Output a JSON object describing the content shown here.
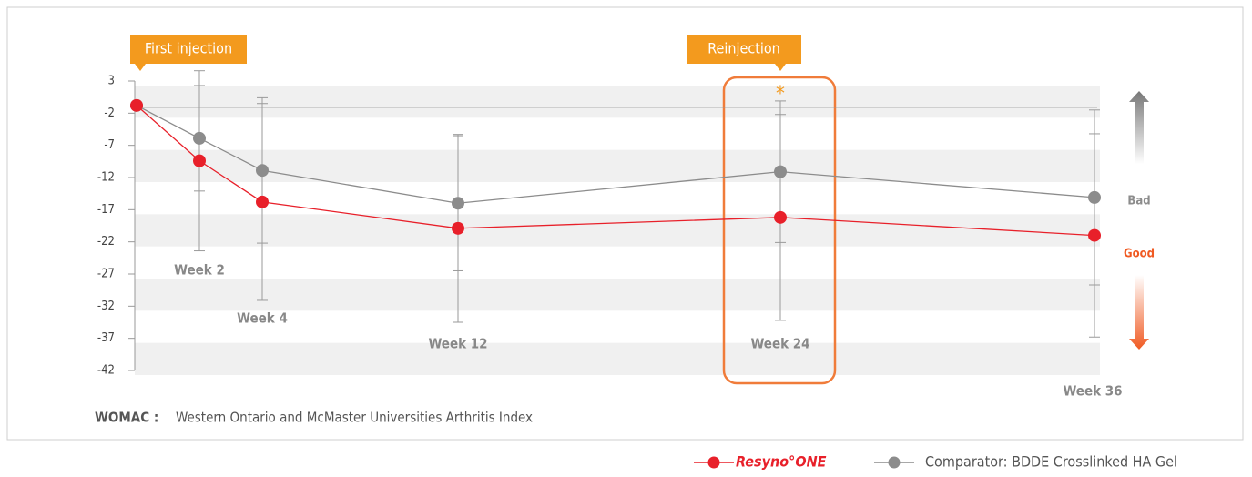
{
  "chart_data": {
    "type": "line",
    "categories": [
      null,
      "Week 2",
      "Week 4",
      "Week 12",
      "Week 24",
      "Week 36"
    ],
    "ylim": [
      -42,
      3
    ],
    "yticks": [
      3,
      -2,
      -7,
      -12,
      -17,
      -22,
      -27,
      -32,
      -37,
      -42
    ],
    "series": [
      {
        "name": "Comparator: BDDE Crosslinked HA Gel",
        "color": "#8c8c8c",
        "values": [
          -0.8,
          -5.9,
          -10.9,
          -16.0,
          -11.1,
          -15.1
        ],
        "errors": [
          0,
          8.2,
          11.3,
          10.5,
          11,
          13.6
        ]
      },
      {
        "name": "Resyno°ONE",
        "color": "#e8202a",
        "values": [
          -0.8,
          -9.4,
          -15.8,
          -19.9,
          -18.2,
          -21.0
        ],
        "errors": [
          0,
          14,
          15.3,
          14.6,
          16,
          15.8
        ]
      }
    ],
    "annotations": {
      "first": "First injection",
      "re": "Reinjection",
      "star": "*",
      "bad": "Bad",
      "good": "Good"
    },
    "footnote": {
      "term": "WOMAC :",
      "text": "Western Ontario and McMaster Universities Arthritis Index"
    }
  }
}
